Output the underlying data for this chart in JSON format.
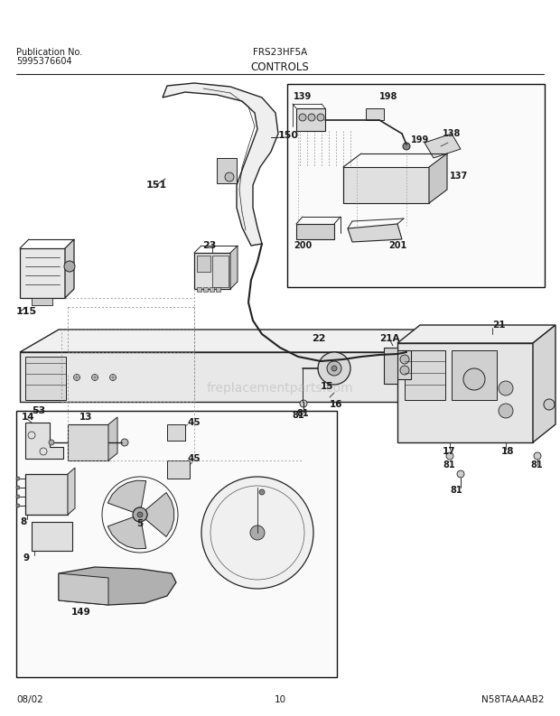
{
  "title_model": "FRS23HF5A",
  "title_section": "CONTROLS",
  "pub_label": "Publication No.",
  "pub_number": "5995376604",
  "date_label": "08/02",
  "page_label": "10",
  "diagram_id": "N58TAAAAB2",
  "bg_color": "#ffffff",
  "text_color": "#1a1a1a",
  "line_color": "#222222",
  "watermark_text": "freplacementparts.com",
  "watermark_color": "#aaaaaa",
  "watermark_alpha": 0.45,
  "fig_width": 6.2,
  "fig_height": 7.93,
  "fig_dpi": 100
}
